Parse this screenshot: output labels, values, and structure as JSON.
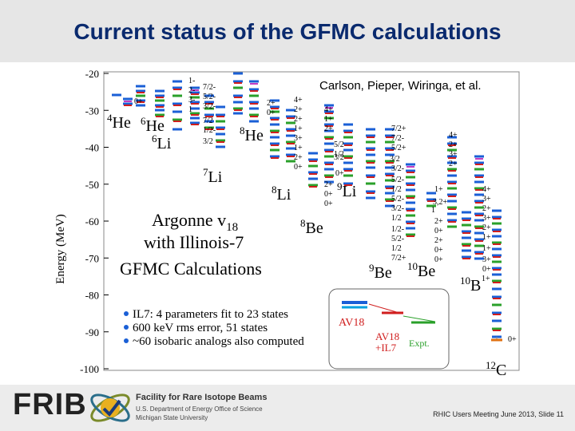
{
  "slide": {
    "title": "Current status of the GFMC calculations",
    "credit": "Carlson, Pieper, Wiringa, et al.",
    "meta": "RHIC Users Meeting June 2013, Slide 11"
  },
  "footer": {
    "logo_text": "FRIB",
    "facility": "Facility for Rare Isotope Beams",
    "affiliation_1": "U.S. Department of Energy Office of Science",
    "affiliation_2": "Michigan State University"
  },
  "figure": {
    "ylabel": "Energy (MeV)",
    "y_ticks": [
      "-20",
      "-30",
      "-40",
      "-50",
      "-60",
      "-70",
      "-80",
      "-90",
      "-100"
    ],
    "nuclei": [
      {
        "mass": "4",
        "symbol": "He"
      },
      {
        "mass": "6",
        "symbol": "He"
      },
      {
        "mass": "6",
        "symbol": "Li"
      },
      {
        "mass": "7",
        "symbol": "Li"
      },
      {
        "mass": "8",
        "symbol": "He"
      },
      {
        "mass": "8",
        "symbol": "Li"
      },
      {
        "mass": "9",
        "symbol": "Li"
      },
      {
        "mass": "8",
        "symbol": "Be"
      },
      {
        "mass": "9",
        "symbol": "Be"
      },
      {
        "mass": "10",
        "symbol": "Be"
      },
      {
        "mass": "10",
        "symbol": "B"
      },
      {
        "mass": "12",
        "symbol": "C"
      }
    ],
    "method_line1": "Argonne v",
    "method_line1_sub": "18",
    "method_line2": "with Illinois-7",
    "method_line3": "GFMC Calculations",
    "bullets": [
      "IL7: 4 parameters fit to 23 states",
      "600 keV rms error, 51 states",
      "~60 isobaric analogs also computed"
    ],
    "legend": {
      "av18": "AV18",
      "av18_il7_1": "AV18",
      "av18_il7_2": "+IL7",
      "expt": "Expt."
    },
    "spin_labels": [
      "0+",
      "1-",
      "2-",
      "3-",
      "1",
      "7/2-",
      "5/2-",
      "3/2-",
      "7/2",
      "1/2-",
      "3/2",
      "2+",
      "0+",
      "4+",
      "2+",
      "2+",
      "1+",
      "3+",
      "1+",
      "2+",
      "0+",
      "2+",
      "0+",
      "0+",
      "4+",
      "1+",
      "2+",
      "3/2",
      "5/2",
      "1/2",
      "7/2+",
      "7/2-",
      "5/2+",
      "3/2",
      "3/2-",
      "5/2-",
      "1/2",
      "5/2-",
      "3/2-",
      "1/2",
      "1+",
      "3,2+",
      "1",
      "4+",
      "2+",
      "3+",
      "2+",
      "4+",
      "3+",
      "2+",
      "3+",
      "2+",
      "1+",
      "1+",
      "3+",
      "0+",
      "2+",
      "0+",
      "1/2-",
      "5/2-",
      "1/2",
      "7/2+",
      "2+",
      "0+",
      "0+",
      "1+",
      "0+",
      "0+"
    ]
  },
  "colors": {
    "title": "#0a2a6e",
    "calc": "#1a5fd6",
    "expt": "#2aa02a",
    "av18": "#d01e1e",
    "bullet": "#1a5fd6",
    "magenta": "#c23cc2"
  }
}
